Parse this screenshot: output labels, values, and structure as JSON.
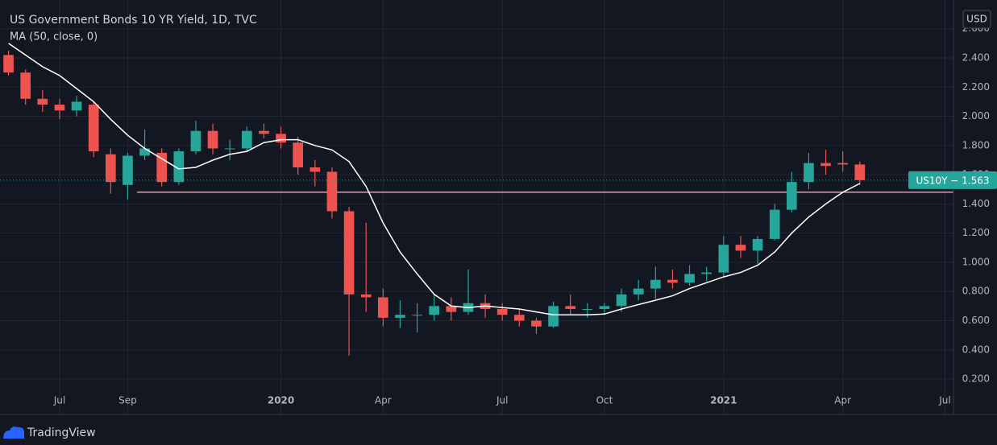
{
  "chart_data": {
    "type": "candlestick",
    "title": "US Government Bonds 10 YR Yield, 1D, TVC",
    "currency": "USD",
    "price_tag": "US10Y − 1.563",
    "brand": "TradingView",
    "categories": [
      null,
      null,
      null,
      "Jul",
      null,
      null,
      null,
      "Sep",
      null,
      null,
      null,
      null,
      null,
      null,
      null,
      null,
      "2020",
      null,
      null,
      null,
      null,
      null,
      "Apr",
      null,
      null,
      null,
      null,
      null,
      null,
      "Jul",
      null,
      null,
      null,
      null,
      null,
      "Oct",
      null,
      null,
      null,
      null,
      null,
      null,
      "2021",
      null,
      null,
      null,
      null,
      null,
      null,
      "Apr",
      null,
      null,
      null,
      null,
      null,
      "Jul"
    ],
    "ohlc": {
      "up_color": "#26a69a",
      "down_color": "#ef5350",
      "open": [
        2.42,
        2.3,
        2.12,
        2.08,
        2.04,
        2.08,
        1.74,
        1.53,
        1.73,
        1.75,
        1.55,
        1.76,
        1.9,
        1.78,
        1.78,
        1.9,
        1.88,
        1.82,
        1.65,
        1.62,
        1.35,
        0.78,
        0.76,
        0.62,
        0.64,
        0.64,
        0.7,
        0.66,
        0.72,
        0.68,
        0.64,
        0.6,
        0.56,
        0.7,
        0.68,
        0.68,
        0.7,
        0.78,
        0.82,
        0.88,
        0.86,
        0.92,
        0.93,
        1.12,
        1.08,
        1.16,
        1.36,
        1.55,
        1.68,
        1.68,
        1.67,
        null,
        null,
        null,
        null,
        null
      ],
      "high": [
        2.45,
        2.32,
        2.18,
        2.12,
        2.14,
        2.1,
        1.78,
        1.75,
        1.91,
        1.78,
        1.78,
        1.97,
        1.95,
        1.84,
        1.93,
        1.95,
        1.93,
        1.86,
        1.7,
        1.65,
        1.38,
        1.27,
        0.82,
        0.74,
        0.72,
        0.78,
        0.76,
        0.95,
        0.78,
        0.72,
        0.68,
        0.62,
        0.73,
        0.78,
        0.72,
        0.72,
        0.82,
        0.88,
        0.97,
        0.95,
        0.98,
        0.97,
        1.18,
        1.18,
        1.18,
        1.4,
        1.62,
        1.75,
        1.77,
        1.76,
        1.69,
        null,
        null,
        null,
        null,
        null
      ],
      "low": [
        2.28,
        2.08,
        2.03,
        1.98,
        2.0,
        1.72,
        1.47,
        1.43,
        1.7,
        1.52,
        1.53,
        1.74,
        1.74,
        1.7,
        1.76,
        1.85,
        1.78,
        1.6,
        1.52,
        1.3,
        0.36,
        0.66,
        0.56,
        0.55,
        0.52,
        0.6,
        0.6,
        0.64,
        0.62,
        0.6,
        0.56,
        0.51,
        0.55,
        0.64,
        0.62,
        0.64,
        0.66,
        0.74,
        0.75,
        0.82,
        0.84,
        0.87,
        0.9,
        1.03,
        0.99,
        1.15,
        1.34,
        1.5,
        1.6,
        1.62,
        1.53,
        null,
        null,
        null,
        null,
        null
      ],
      "close": [
        2.3,
        2.12,
        2.08,
        2.04,
        2.1,
        1.76,
        1.55,
        1.73,
        1.78,
        1.55,
        1.76,
        1.9,
        1.78,
        1.78,
        1.9,
        1.88,
        1.82,
        1.65,
        1.62,
        1.35,
        0.78,
        0.76,
        0.62,
        0.64,
        0.64,
        0.7,
        0.66,
        0.72,
        0.68,
        0.64,
        0.6,
        0.56,
        0.7,
        0.68,
        0.68,
        0.7,
        0.78,
        0.82,
        0.88,
        0.86,
        0.92,
        0.93,
        1.12,
        1.08,
        1.16,
        1.36,
        1.55,
        1.68,
        1.66,
        1.67,
        1.563,
        null,
        null,
        null,
        null,
        null
      ]
    },
    "series": [
      {
        "name": "MA (50, close, 0)",
        "color": "#ffffff",
        "values": [
          2.5,
          2.42,
          2.34,
          2.28,
          2.19,
          2.1,
          1.98,
          1.87,
          1.78,
          1.71,
          1.64,
          1.65,
          1.7,
          1.74,
          1.76,
          1.82,
          1.84,
          1.84,
          1.8,
          1.77,
          1.69,
          1.52,
          1.27,
          1.07,
          0.92,
          0.78,
          0.7,
          0.69,
          0.7,
          0.69,
          0.68,
          0.66,
          0.64,
          0.64,
          0.64,
          0.645,
          0.68,
          0.71,
          0.74,
          0.77,
          0.82,
          0.86,
          0.9,
          0.93,
          0.98,
          1.07,
          1.2,
          1.31,
          1.4,
          1.48,
          1.54,
          null,
          null,
          null,
          null,
          null
        ]
      }
    ],
    "hline": {
      "value": 1.48,
      "color": "#f8bbd0"
    },
    "ylim": [
      0.123,
      2.797
    ],
    "yticks": [
      {
        "value": 0.2,
        "label": "0.200"
      },
      {
        "value": 0.4,
        "label": "0.400"
      },
      {
        "value": 0.6,
        "label": "0.600"
      },
      {
        "value": 0.8,
        "label": "0.800"
      },
      {
        "value": 1.0,
        "label": "1.000"
      },
      {
        "value": 1.2,
        "label": "1.200"
      },
      {
        "value": 1.4,
        "label": "1.400"
      },
      {
        "value": 1.6,
        "label": "1.600"
      },
      {
        "value": 1.8,
        "label": "1.800"
      },
      {
        "value": 2.0,
        "label": "2.000"
      },
      {
        "value": 2.2,
        "label": "2.200"
      },
      {
        "value": 2.4,
        "label": "2.400"
      },
      {
        "value": 2.6,
        "label": "2.600"
      }
    ],
    "grid": true
  }
}
